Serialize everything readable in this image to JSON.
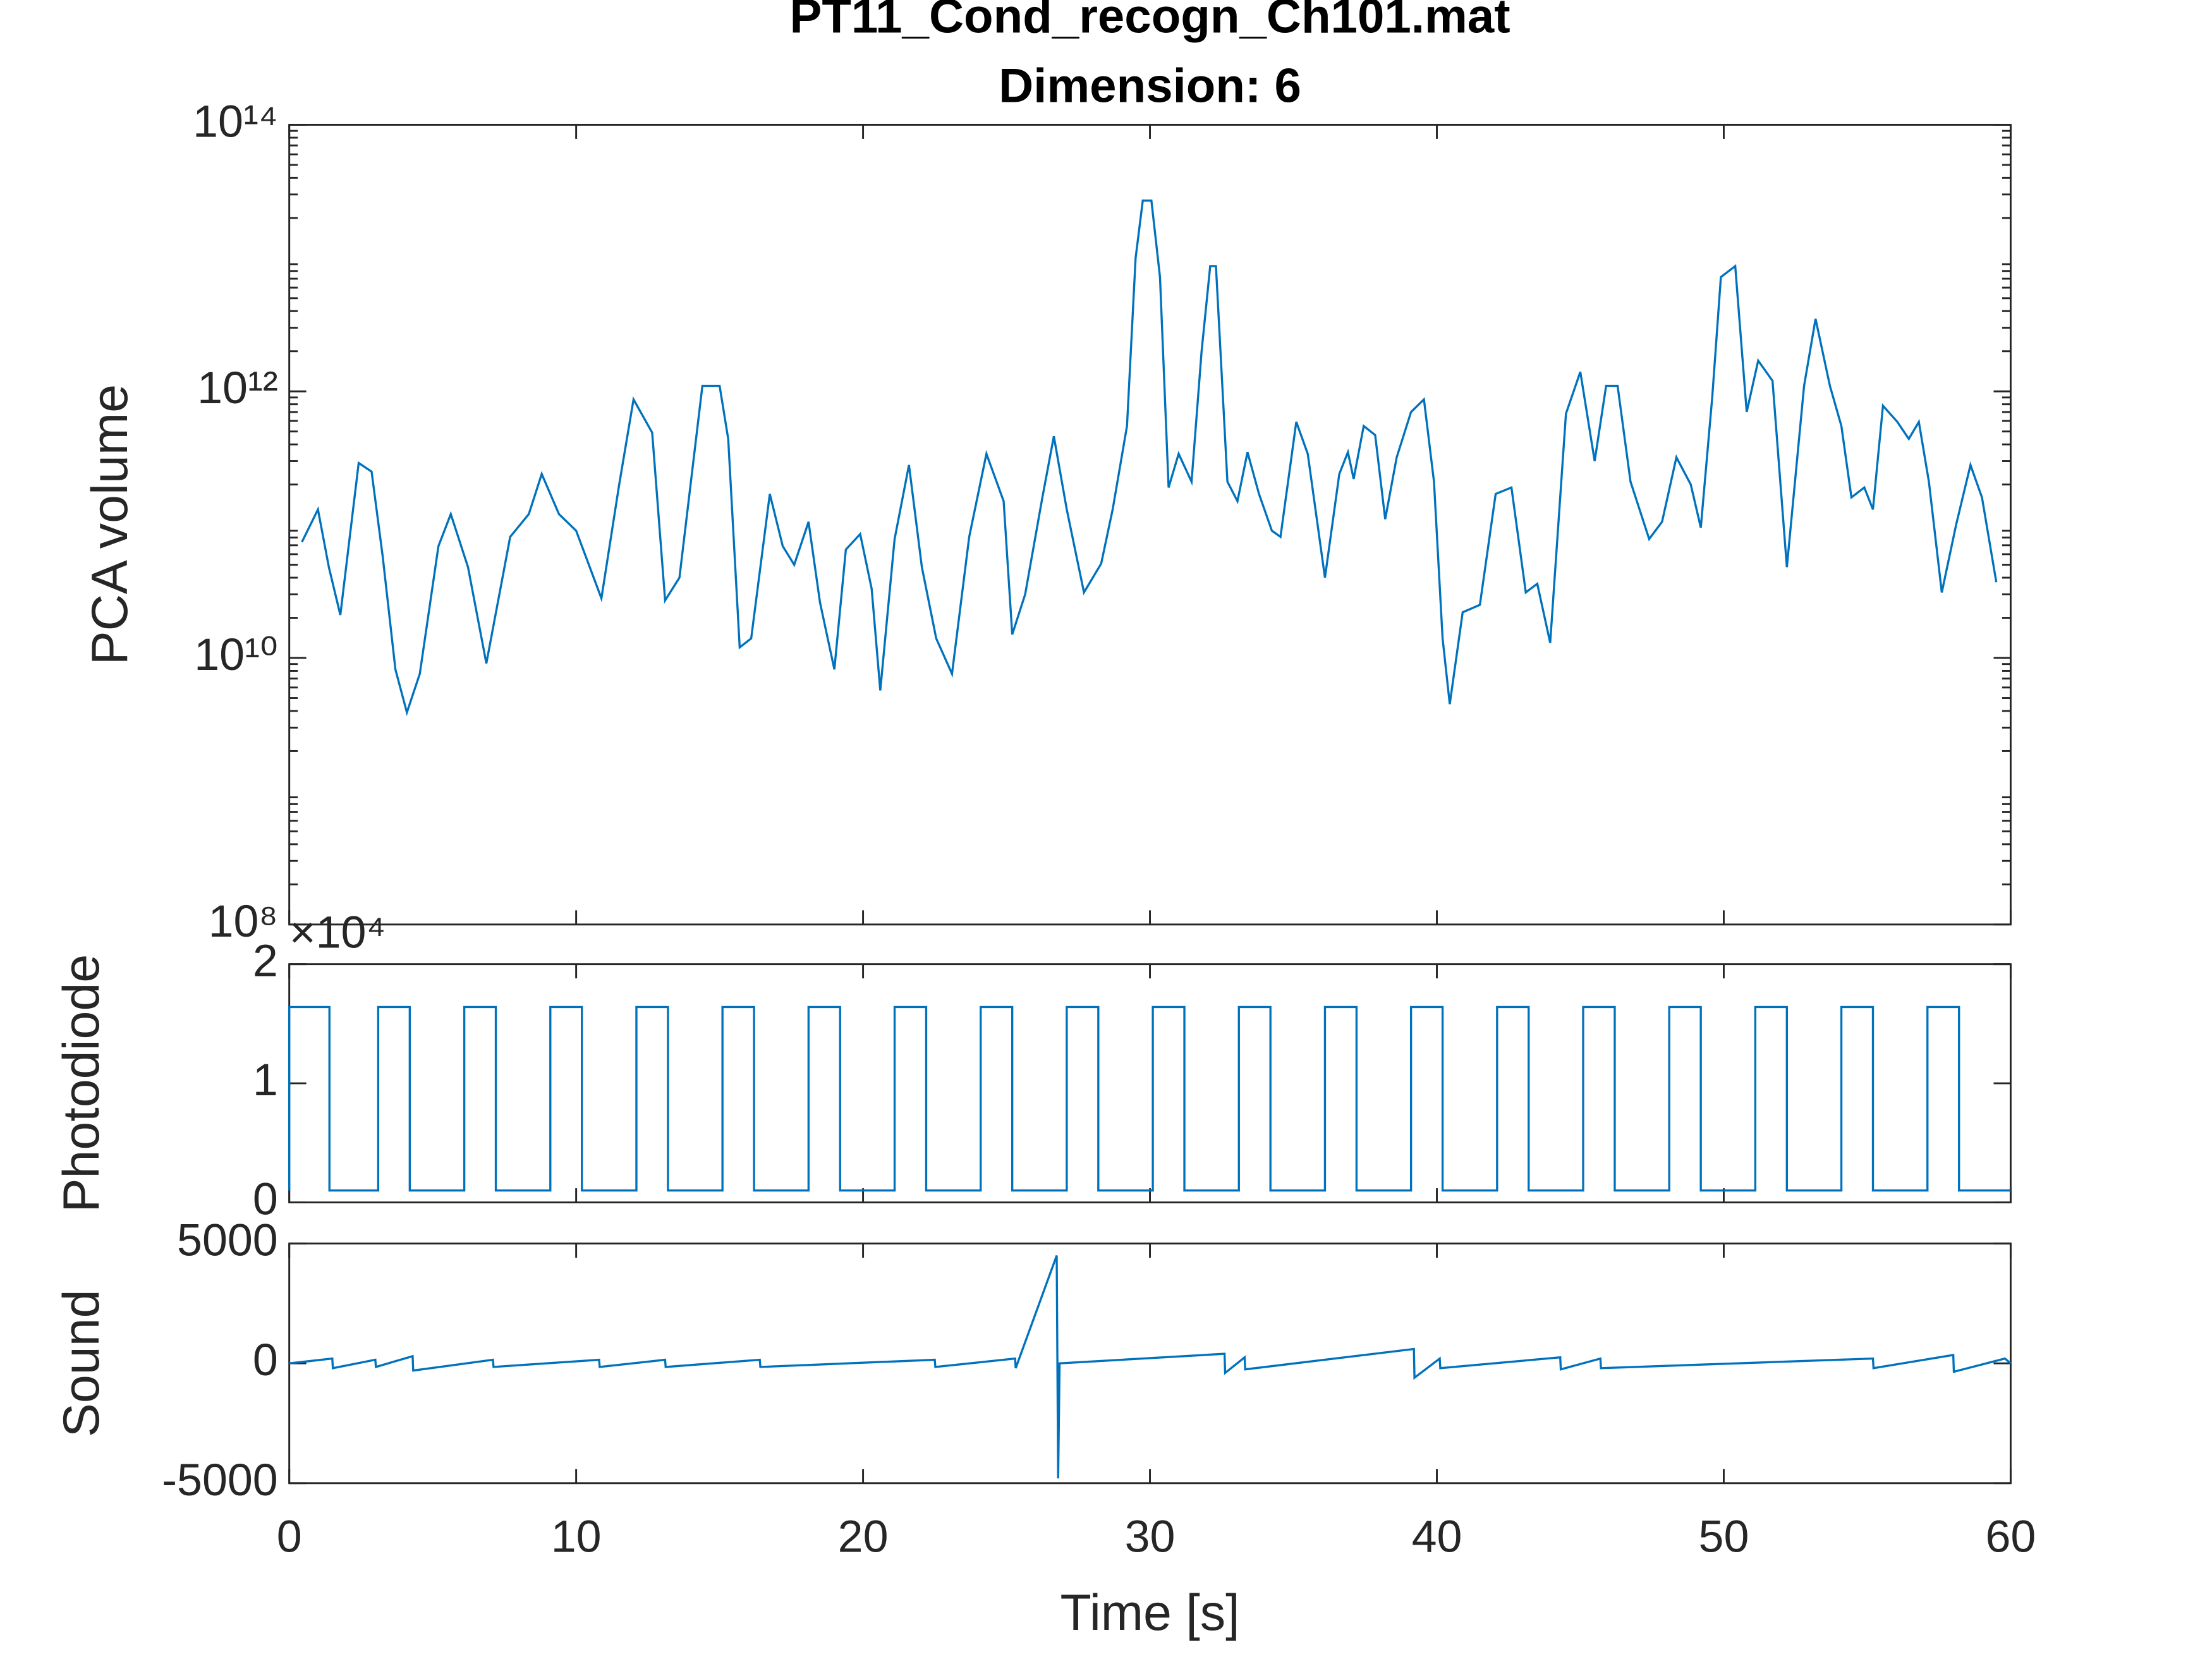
{
  "chart_data": [
    {
      "type": "line",
      "title": [
        "PT11_Cond_recogn_Ch101.mat",
        "Dimension: 6"
      ],
      "ylabel": "PCA volume",
      "ylog": true,
      "color": "#0072bd",
      "xlim": [
        0,
        60
      ],
      "xticks": [
        0,
        10,
        20,
        30,
        40,
        50,
        60
      ],
      "show_xtick_labels": false,
      "ylim": [
        100000000,
        100000000000000
      ],
      "yticks": [
        {
          "value": 100000000,
          "label": "10⁸"
        },
        {
          "value": 10000000000,
          "label": "10¹⁰"
        },
        {
          "value": 1000000000000,
          "label": "10¹²"
        },
        {
          "value": 100000000000000,
          "label": "10¹⁴"
        }
      ],
      "x": [
        0.44,
        1.0,
        1.38,
        1.78,
        2.42,
        2.87,
        3.26,
        3.7,
        4.1,
        4.55,
        5.2,
        5.63,
        6.23,
        6.87,
        7.7,
        8.35,
        8.8,
        9.4,
        10.0,
        10.88,
        11.5,
        12.0,
        12.65,
        13.1,
        13.6,
        14.4,
        15.0,
        15.3,
        15.7,
        16.1,
        16.75,
        17.2,
        17.6,
        18.1,
        18.5,
        19.0,
        19.4,
        19.9,
        20.3,
        20.6,
        21.1,
        21.6,
        22.05,
        22.55,
        23.1,
        23.7,
        24.3,
        24.9,
        25.2,
        25.65,
        26.25,
        26.65,
        27.1,
        27.7,
        28.3,
        28.7,
        29.2,
        29.5,
        29.75,
        30.05,
        30.35,
        30.65,
        31.0,
        31.45,
        31.8,
        32.1,
        32.3,
        32.7,
        33.05,
        33.4,
        33.8,
        34.25,
        34.55,
        35.1,
        35.5,
        36.1,
        36.6,
        36.9,
        37.1,
        37.45,
        37.85,
        38.2,
        38.6,
        39.1,
        39.55,
        39.9,
        40.2,
        40.45,
        40.9,
        41.5,
        42.05,
        42.6,
        43.1,
        43.5,
        43.95,
        44.5,
        45.0,
        45.5,
        45.9,
        46.3,
        46.75,
        47.4,
        47.85,
        48.35,
        48.85,
        49.2,
        49.6,
        49.9,
        50.4,
        50.8,
        51.2,
        51.7,
        52.2,
        52.8,
        53.2,
        53.7,
        54.1,
        54.45,
        54.9,
        55.2,
        55.55,
        56.05,
        56.45,
        56.8,
        57.15,
        57.6,
        58.1,
        58.6,
        59.0,
        59.5
      ],
      "values": [
        74000000000,
        130000000000,
        48000000000,
        21000000000,
        290000000000,
        250000000000,
        57000000000,
        8200000000,
        3900000000,
        7600000000,
        69000000000,
        120000000000,
        48000000000,
        9100000000,
        81000000000,
        120000000000,
        240000000000,
        120000000000,
        90000000000,
        28000000000,
        200000000000,
        870000000000,
        490000000000,
        27000000000,
        40000000000,
        1100000000000,
        1100000000000,
        440000000000,
        12000000000,
        14000000000,
        170000000000,
        69000000000,
        50000000000,
        105000000000,
        26000000000,
        8200000000,
        65000000000,
        85000000000,
        33000000000,
        5700000000,
        78000000000,
        280000000000,
        48000000000,
        14000000000,
        7600000000,
        81000000000,
        340000000000,
        150000000000,
        15000000000,
        30000000000,
        160000000000,
        460000000000,
        130000000000,
        31000000000,
        51000000000,
        130000000000,
        550000000000,
        10000000000000,
        27000000000000,
        27000000000000,
        7200000000000,
        190000000000,
        340000000000,
        210000000000,
        2000000000000,
        8700000000000,
        8700000000000,
        210000000000,
        150000000000,
        350000000000,
        170000000000,
        90000000000,
        81000000000,
        590000000000,
        340000000000,
        40000000000,
        240000000000,
        350000000000,
        220000000000,
        550000000000,
        470000000000,
        110000000000,
        320000000000,
        700000000000,
        870000000000,
        210000000000,
        14000000000,
        4500000000,
        22000000000,
        25000000000,
        170000000000,
        190000000000,
        31000000000,
        36000000000,
        13000000000,
        680000000000,
        1400000000000,
        300000000000,
        1100000000000,
        1100000000000,
        210000000000,
        78000000000,
        105000000000,
        320000000000,
        200000000000,
        95000000000,
        910000000000,
        7200000000000,
        8700000000000,
        700000000000,
        1700000000000,
        1200000000000,
        48000000000,
        1100000000000,
        3500000000000,
        1100000000000,
        550000000000,
        160000000000,
        190000000000,
        130000000000,
        780000000000,
        590000000000,
        440000000000,
        590000000000,
        210000000000,
        31000000000,
        100000000000,
        280000000000,
        160000000000,
        37000000000
      ]
    },
    {
      "type": "line",
      "ylabel": "Photodiode",
      "y_exponent_label": "×10⁴",
      "color": "#0072bd",
      "xlim": [
        0,
        60
      ],
      "xticks": [
        0,
        10,
        20,
        30,
        40,
        50,
        60
      ],
      "show_xtick_labels": false,
      "ylim": [
        0,
        20000
      ],
      "yticks": [
        {
          "value": 0,
          "label": "0"
        },
        {
          "value": 10000,
          "label": "1"
        },
        {
          "value": 20000,
          "label": "2"
        }
      ],
      "x": [
        0,
        0,
        1.4,
        1.4,
        3.1,
        3.1,
        4.2,
        4.2,
        6.1,
        6.1,
        7.2,
        7.2,
        9.1,
        9.1,
        10.2,
        10.2,
        12.1,
        12.1,
        13.2,
        13.2,
        15.1,
        15.1,
        16.2,
        16.2,
        18.1,
        18.1,
        19.2,
        19.2,
        21.1,
        21.1,
        22.2,
        22.2,
        24.1,
        24.1,
        25.2,
        25.2,
        27.1,
        27.1,
        28.2,
        28.2,
        30.1,
        30.1,
        31.2,
        31.2,
        33.1,
        33.1,
        34.2,
        34.2,
        36.1,
        36.1,
        37.2,
        37.2,
        39.1,
        39.1,
        40.2,
        40.2,
        42.1,
        42.1,
        43.2,
        43.2,
        45.1,
        45.1,
        46.2,
        46.2,
        48.1,
        48.1,
        49.2,
        49.2,
        51.1,
        51.1,
        52.2,
        52.2,
        54.1,
        54.1,
        55.2,
        55.2,
        57.1,
        57.1,
        58.2,
        58.2,
        60
      ],
      "values": [
        1000,
        16400,
        16400,
        1000,
        1000,
        16400,
        16400,
        1000,
        1000,
        16400,
        16400,
        1000,
        1000,
        16400,
        16400,
        1000,
        1000,
        16400,
        16400,
        1000,
        1000,
        16400,
        16400,
        1000,
        1000,
        16400,
        16400,
        1000,
        1000,
        16400,
        16400,
        1000,
        1000,
        16400,
        16400,
        1000,
        1000,
        16400,
        16400,
        1000,
        1000,
        16400,
        16400,
        1000,
        1000,
        16400,
        16400,
        1000,
        1000,
        16400,
        16400,
        1000,
        1000,
        16400,
        16400,
        1000,
        1000,
        16400,
        16400,
        1000,
        1000,
        16400,
        16400,
        1000,
        1000,
        16400,
        16400,
        1000,
        1000,
        16400,
        16400,
        1000,
        1000,
        16400,
        16400,
        1000,
        1000,
        16400,
        16400,
        1000,
        1000
      ]
    },
    {
      "type": "line",
      "ylabel": "Sound",
      "xlabel": "Time [s]",
      "color": "#0072bd",
      "xlim": [
        0,
        60
      ],
      "xticks": [
        0,
        10,
        20,
        30,
        40,
        50,
        60
      ],
      "show_xtick_labels": true,
      "ylim": [
        -5000,
        5000
      ],
      "yticks": [
        -5000,
        0,
        5000
      ],
      "x": [
        0,
        1.5,
        1.52,
        3.0,
        3.02,
        4.3,
        4.32,
        7.1,
        7.12,
        10.8,
        10.82,
        13.1,
        13.12,
        16.4,
        16.42,
        22.5,
        22.52,
        25.3,
        25.32,
        26.75,
        26.8,
        26.85,
        32.6,
        32.62,
        33.3,
        33.32,
        39.2,
        39.22,
        40.1,
        40.12,
        44.3,
        44.32,
        45.7,
        45.72,
        55.2,
        55.22,
        58.0,
        58.02,
        59.8,
        60
      ],
      "values": [
        0,
        200,
        -200,
        150,
        -150,
        300,
        -300,
        150,
        -150,
        150,
        -150,
        150,
        -150,
        150,
        -150,
        150,
        -150,
        200,
        -200,
        4500,
        -4800,
        0,
        400,
        -400,
        250,
        -250,
        600,
        -600,
        200,
        -200,
        250,
        -250,
        200,
        -200,
        200,
        -200,
        350,
        -350,
        200,
        0
      ]
    }
  ]
}
